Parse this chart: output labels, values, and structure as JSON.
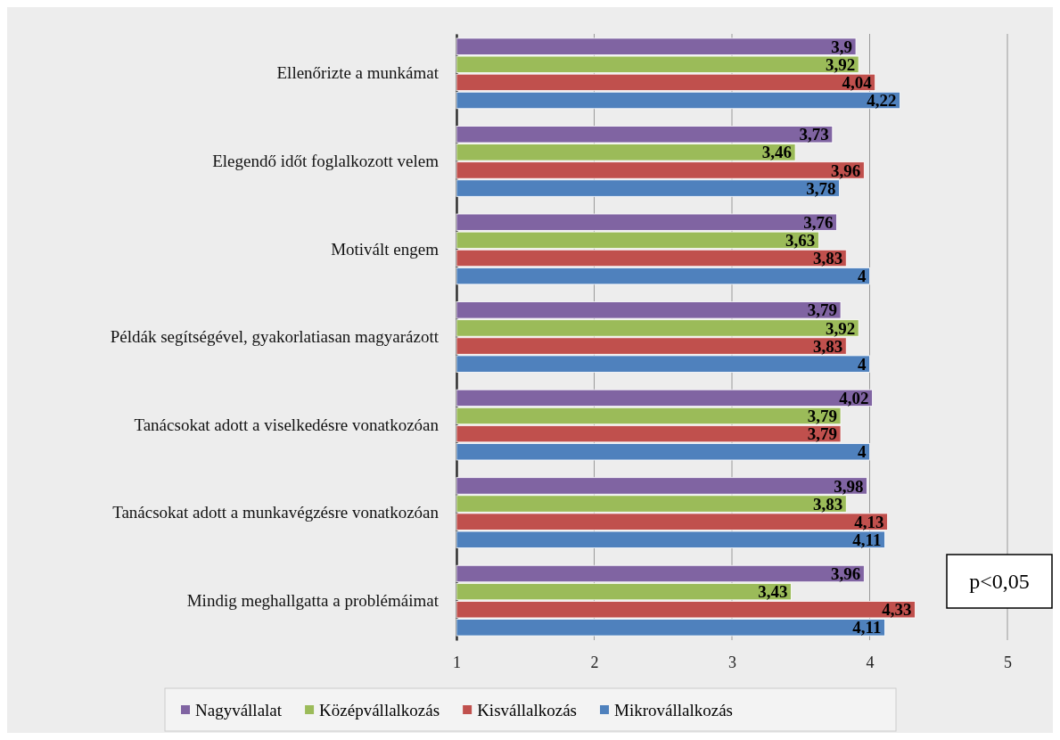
{
  "chart_data": {
    "type": "bar",
    "orientation": "horizontal",
    "categories": [
      "Ellenőrizte a munkámat",
      "Elegendő időt foglalkozott velem",
      "Motivált engem",
      "Példák segítségével, gyakorlatiasan magyarázott",
      "Tanácsokat adott a viselkedésre vonatkozóan",
      "Tanácsokat adott a munkavégzésre vonatkozóan",
      "Mindig meghallgatta a problémáimat"
    ],
    "series": [
      {
        "name": "Nagyvállalat",
        "color": "#8064a2",
        "values": [
          3.9,
          3.73,
          3.76,
          3.79,
          4.02,
          3.98,
          3.96
        ],
        "value_labels": [
          "3,9",
          "3,73",
          "3,76",
          "3,79",
          "4,02",
          "3,98",
          "3,96"
        ]
      },
      {
        "name": "Középvállalkozás",
        "color": "#9bbb59",
        "values": [
          3.92,
          3.46,
          3.63,
          3.92,
          3.79,
          3.83,
          3.43
        ],
        "value_labels": [
          "3,92",
          "3,46",
          "3,63",
          "3,92",
          "3,79",
          "3,83",
          "3,43"
        ]
      },
      {
        "name": "Kisvállalkozás",
        "color": "#c0504d",
        "values": [
          4.04,
          3.96,
          3.83,
          3.83,
          3.79,
          4.13,
          4.33
        ],
        "value_labels": [
          "4,04",
          "3,96",
          "3,83",
          "3,83",
          "3,79",
          "4,13",
          "4,33"
        ]
      },
      {
        "name": "Mikrovállalkozás",
        "color": "#4f81bd",
        "values": [
          4.22,
          3.78,
          4,
          4,
          4,
          4.11,
          4.11
        ],
        "value_labels": [
          "4,22",
          "3,78",
          "4",
          "4",
          "4",
          "4,11",
          "4,11"
        ]
      }
    ],
    "xlim": [
      1,
      5
    ],
    "xticks": [
      1,
      2,
      3,
      4,
      5
    ],
    "grid": "x",
    "legend": "bottom",
    "annotations": [
      "p<0,05"
    ]
  }
}
